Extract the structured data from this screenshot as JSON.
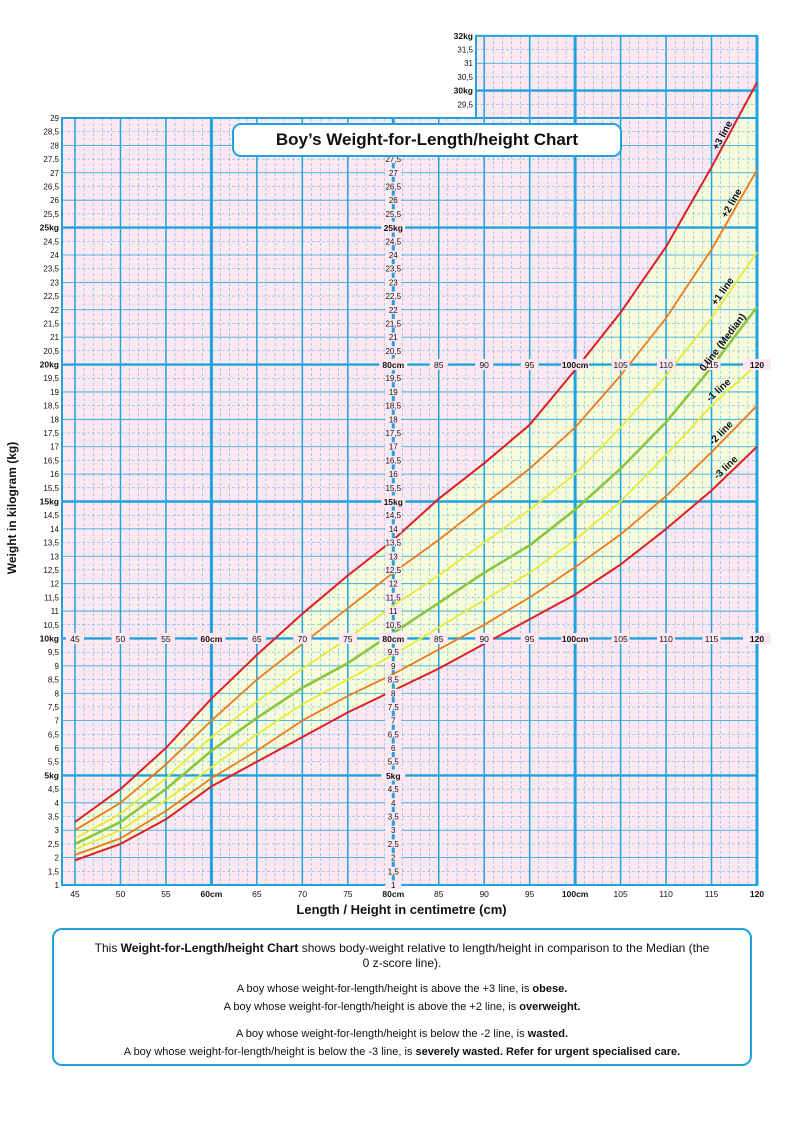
{
  "title": "Boy’s Weight-for-Length/height Chart",
  "axes": {
    "ylabel": "Weight in kilogram (kg)",
    "xlabel": "Length / Height in centimetre (cm)"
  },
  "info": {
    "intro_pre": "This ",
    "intro_bold": "Weight-for-Length/height Chart",
    "intro_post": " shows body-weight relative to length/height in comparison to the Median (the 0 z-score line).",
    "lines": [
      {
        "text": "A boy whose weight-for-length/height is above the +3 line, is ",
        "bold": "obese."
      },
      {
        "text": "A boy whose weight-for-length/height is above the +2 line, is ",
        "bold": "overweight."
      },
      {
        "text": "A boy whose weight-for-length/height is below the -2 line, is ",
        "bold": "wasted."
      },
      {
        "text": "A boy whose weight-for-length/height is below the -3 line, is ",
        "bold": "severely wasted. Refer for urgent specialised care."
      }
    ]
  },
  "colors": {
    "grid": "#1fa3dc",
    "background_pink": "#fde8f1",
    "band_fill": "#f7fbdc",
    "plus3": "#e01e26",
    "plus2": "#ee7a1e",
    "plus1": "#e9e93a",
    "median": "#8cc63f",
    "minus1": "#e9e93a",
    "minus2": "#ee7a1e",
    "minus3": "#e01e26"
  },
  "chart_data": {
    "type": "line",
    "title": "Boy’s Weight-for-Length/height Chart",
    "xlabel": "Length / Height in centimetre (cm)",
    "ylabel": "Weight in kilogram (kg)",
    "xlim": [
      45,
      120
    ],
    "ylim": [
      1,
      29
    ],
    "ylim_upper_right_extension": [
      29,
      32
    ],
    "x": [
      45,
      50,
      55,
      60,
      65,
      70,
      75,
      80,
      85,
      90,
      95,
      100,
      105,
      110,
      115,
      120
    ],
    "x_tick_labels": [
      "45",
      "50",
      "55",
      "60cm",
      "65",
      "70",
      "75",
      "80cm",
      "85",
      "90",
      "95",
      "100cm",
      "105",
      "110",
      "115",
      "120"
    ],
    "series": [
      {
        "name": "+3 line",
        "color_key": "plus3",
        "width": 2,
        "values": [
          3.3,
          4.5,
          6.0,
          7.8,
          9.4,
          10.9,
          12.3,
          13.6,
          15.1,
          16.4,
          17.8,
          19.8,
          21.9,
          24.3,
          27.2,
          30.3
        ]
      },
      {
        "name": "+2 line",
        "color_key": "plus2",
        "width": 1.8,
        "values": [
          3.0,
          4.0,
          5.4,
          7.0,
          8.5,
          9.8,
          11.1,
          12.4,
          13.6,
          14.9,
          16.2,
          17.7,
          19.6,
          21.7,
          24.2,
          27.1
        ]
      },
      {
        "name": "+1 line",
        "color_key": "plus1",
        "width": 1.8,
        "values": [
          2.7,
          3.6,
          4.9,
          6.4,
          7.7,
          8.9,
          10.0,
          11.2,
          12.3,
          13.5,
          14.7,
          16.0,
          17.7,
          19.6,
          21.7,
          24.1
        ]
      },
      {
        "name": "0 line (Median)",
        "color_key": "median",
        "width": 2.6,
        "values": [
          2.5,
          3.3,
          4.5,
          5.9,
          7.1,
          8.2,
          9.1,
          10.2,
          11.3,
          12.4,
          13.4,
          14.7,
          16.2,
          17.9,
          19.9,
          22.1
        ]
      },
      {
        "name": "-1 line",
        "color_key": "minus1",
        "width": 1.8,
        "values": [
          2.3,
          3.0,
          4.1,
          5.3,
          6.5,
          7.6,
          8.5,
          9.4,
          10.4,
          11.4,
          12.4,
          13.6,
          15.0,
          16.7,
          18.5,
          20.0
        ]
      },
      {
        "name": "-2 line",
        "color_key": "minus2",
        "width": 1.8,
        "values": [
          2.1,
          2.7,
          3.7,
          4.9,
          5.9,
          7.0,
          7.9,
          8.7,
          9.6,
          10.5,
          11.5,
          12.6,
          13.8,
          15.2,
          16.8,
          18.5
        ]
      },
      {
        "name": "-3 line",
        "color_key": "minus3",
        "width": 2,
        "values": [
          1.9,
          2.5,
          3.4,
          4.6,
          5.5,
          6.4,
          7.3,
          8.1,
          8.9,
          9.8,
          10.7,
          11.6,
          12.7,
          14.0,
          15.4,
          17.0
        ]
      }
    ],
    "grid": true,
    "y_major_labels": [
      "5kg",
      "10kg",
      "15kg",
      "20kg",
      "25kg"
    ],
    "upper_ext_labels": [
      "29,5",
      "30kg",
      "30,5",
      "31",
      "31,5",
      "32kg"
    ]
  }
}
